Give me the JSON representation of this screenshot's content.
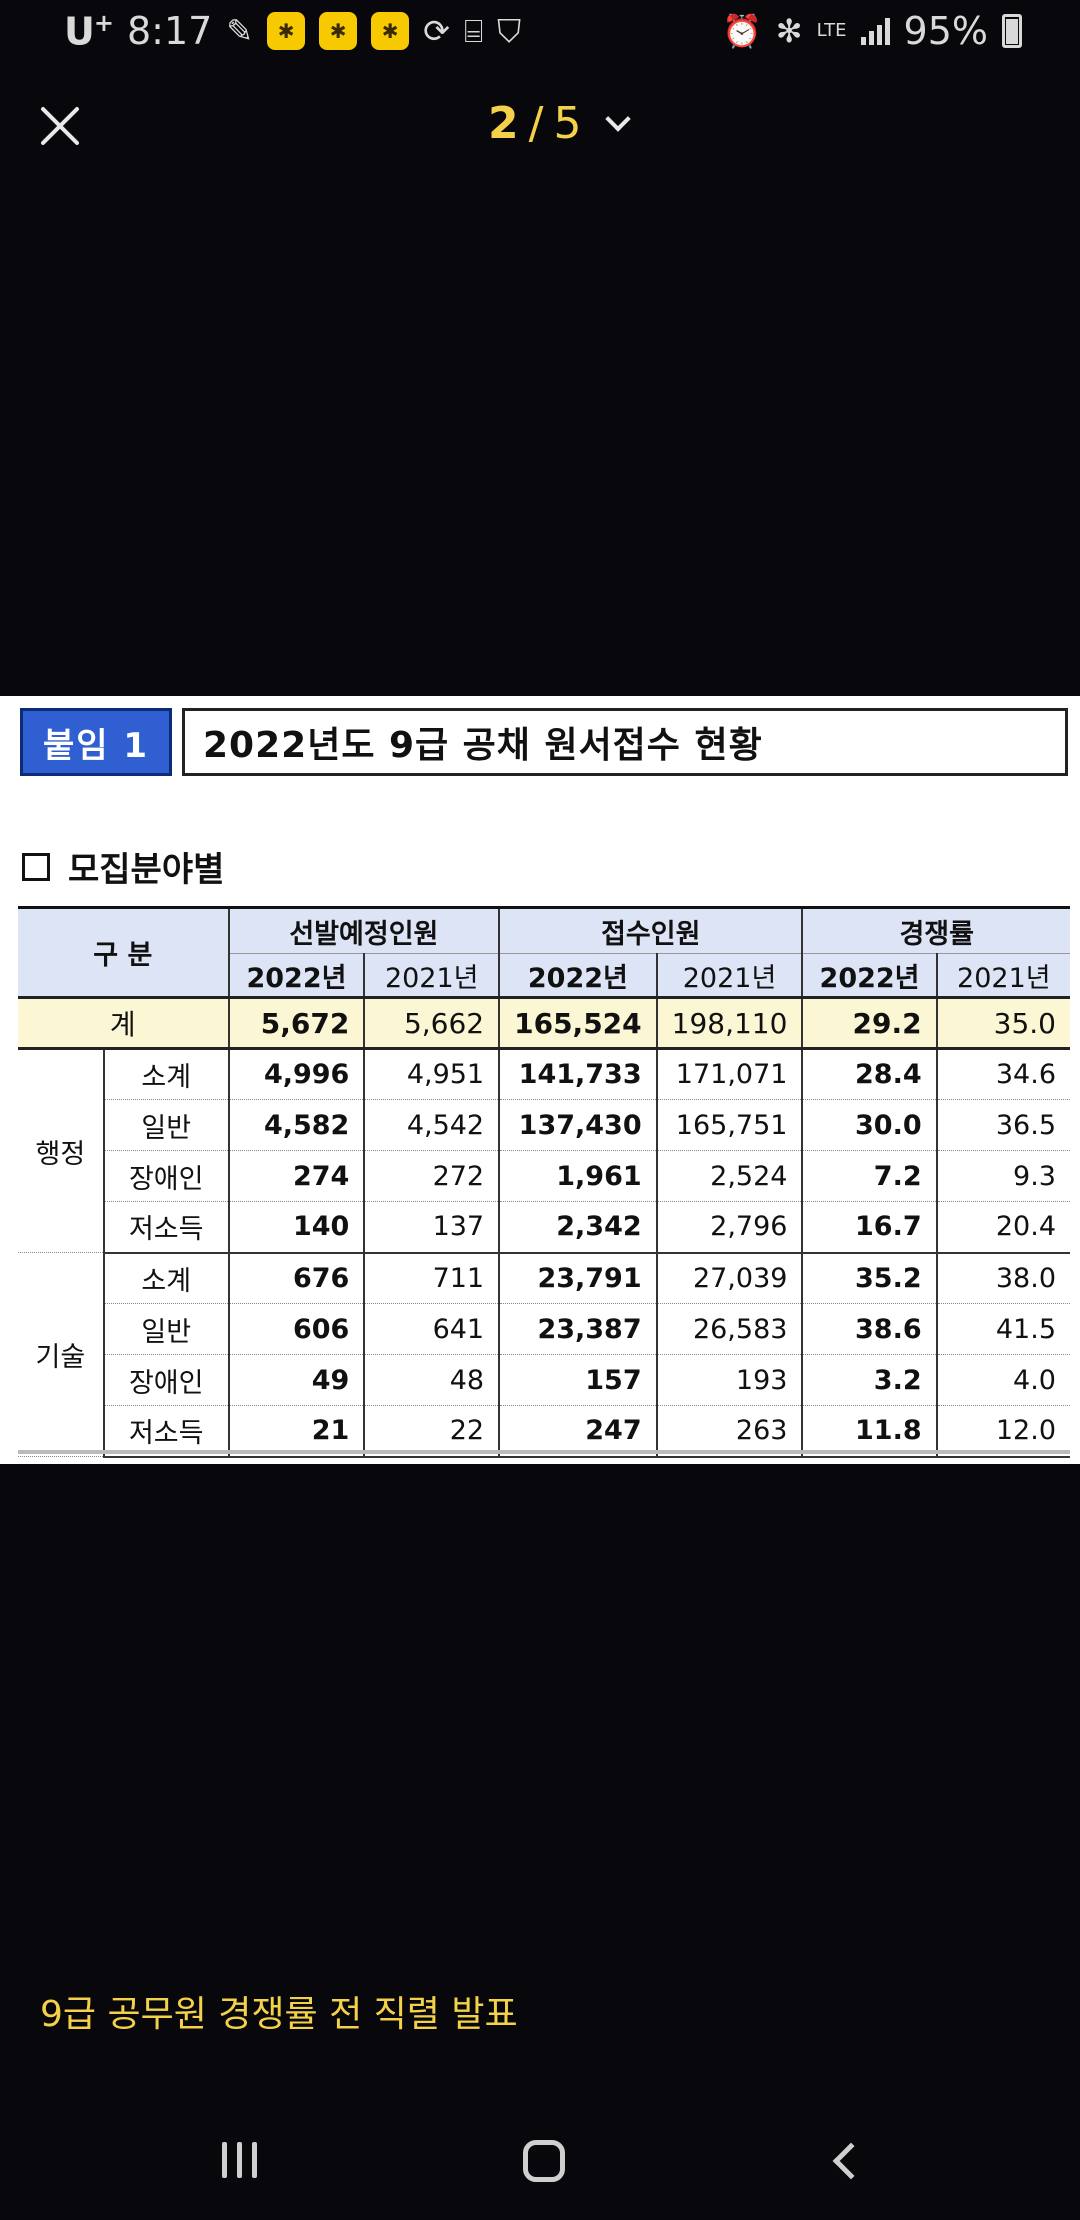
{
  "status_bar": {
    "carrier": "U",
    "carrier_plus": "+",
    "time": "8:17",
    "lte": "LTE",
    "battery": "95%"
  },
  "viewer": {
    "current_page": "2",
    "separator": "/",
    "total_pages": "5"
  },
  "document": {
    "tag": "붙임 1",
    "title": "2022년도 9급 공채 원서접수 현황",
    "section": "모집분야별",
    "headers": {
      "category": "구 분",
      "selection": "선발예정인원",
      "applicants": "접수인원",
      "competition": "경쟁률",
      "y2022": "2022년",
      "y2021": "2021년"
    },
    "total_row": {
      "label": "계",
      "values": [
        "5,672",
        "5,662",
        "165,524",
        "198,110",
        "29.2",
        "35.0"
      ]
    },
    "groups": [
      {
        "name": "행정",
        "rows": [
          {
            "label": "소계",
            "values": [
              "4,996",
              "4,951",
              "141,733",
              "171,071",
              "28.4",
              "34.6"
            ]
          },
          {
            "label": "일반",
            "values": [
              "4,582",
              "4,542",
              "137,430",
              "165,751",
              "30.0",
              "36.5"
            ]
          },
          {
            "label": "장애인",
            "values": [
              "274",
              "272",
              "1,961",
              "2,524",
              "7.2",
              "9.3"
            ]
          },
          {
            "label": "저소득",
            "values": [
              "140",
              "137",
              "2,342",
              "2,796",
              "16.7",
              "20.4"
            ]
          }
        ]
      },
      {
        "name": "기술",
        "rows": [
          {
            "label": "소계",
            "values": [
              "676",
              "711",
              "23,791",
              "27,039",
              "35.2",
              "38.0"
            ]
          },
          {
            "label": "일반",
            "values": [
              "606",
              "641",
              "23,387",
              "26,583",
              "38.6",
              "41.5"
            ]
          },
          {
            "label": "장애인",
            "values": [
              "49",
              "48",
              "157",
              "193",
              "3.2",
              "4.0"
            ]
          },
          {
            "label": "저소득",
            "values": [
              "21",
              "22",
              "247",
              "263",
              "11.8",
              "12.0"
            ]
          }
        ]
      }
    ]
  },
  "caption": "9급 공무원 경쟁률 전 직렬 발표",
  "colors": {
    "accent": "#f3d24a",
    "tag_blue": "#2f5fd0",
    "header_bg": "#dde4f6",
    "total_bg": "#fbf6d4"
  }
}
